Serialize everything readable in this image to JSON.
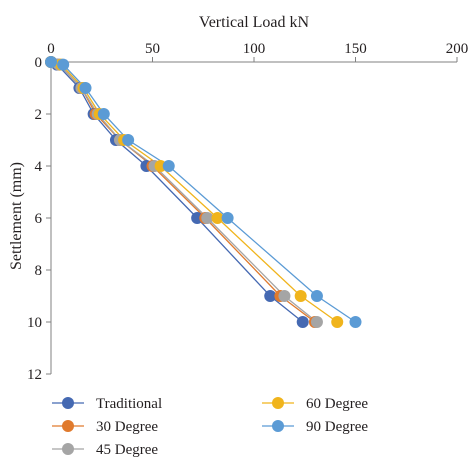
{
  "chart_data": {
    "type": "line",
    "title": "",
    "xlabel": "Vertical Load kN",
    "ylabel": "Settlement (mm)",
    "x_axis_position": "top",
    "y_axis_inverted": true,
    "xlim": [
      0,
      200
    ],
    "ylim": [
      0,
      12
    ],
    "x_ticks": [
      "0",
      "50",
      "100",
      "150",
      "200"
    ],
    "y_ticks": [
      "0",
      "2",
      "4",
      "6",
      "8",
      "10",
      "12"
    ],
    "grid": false,
    "legend_position": "bottom",
    "series": [
      {
        "name": "Traditional",
        "color": "#4569b2",
        "points": [
          {
            "load": 0,
            "settlement": 0
          },
          {
            "load": 3,
            "settlement": 0.1
          },
          {
            "load": 14,
            "settlement": 1
          },
          {
            "load": 21,
            "settlement": 2
          },
          {
            "load": 32,
            "settlement": 3
          },
          {
            "load": 47,
            "settlement": 4
          },
          {
            "load": 72,
            "settlement": 6
          },
          {
            "load": 108,
            "settlement": 9
          },
          {
            "load": 124,
            "settlement": 10
          }
        ]
      },
      {
        "name": "30 Degree",
        "color": "#e07a2d",
        "points": [
          {
            "load": 0,
            "settlement": 0
          },
          {
            "load": 4,
            "settlement": 0.1
          },
          {
            "load": 15,
            "settlement": 1
          },
          {
            "load": 22,
            "settlement": 2
          },
          {
            "load": 34,
            "settlement": 3
          },
          {
            "load": 50,
            "settlement": 4
          },
          {
            "load": 76,
            "settlement": 6
          },
          {
            "load": 113,
            "settlement": 9
          },
          {
            "load": 130,
            "settlement": 10
          }
        ]
      },
      {
        "name": "45 Degree",
        "color": "#a5a5a5",
        "points": [
          {
            "load": 0,
            "settlement": 0
          },
          {
            "load": 4,
            "settlement": 0.1
          },
          {
            "load": 15,
            "settlement": 1
          },
          {
            "load": 23,
            "settlement": 2
          },
          {
            "load": 34,
            "settlement": 3
          },
          {
            "load": 51,
            "settlement": 4
          },
          {
            "load": 77,
            "settlement": 6
          },
          {
            "load": 115,
            "settlement": 9
          },
          {
            "load": 131,
            "settlement": 10
          }
        ]
      },
      {
        "name": "60 Degree",
        "color": "#f0b41c",
        "points": [
          {
            "load": 0,
            "settlement": 0
          },
          {
            "load": 5,
            "settlement": 0.1
          },
          {
            "load": 16,
            "settlement": 1
          },
          {
            "load": 24,
            "settlement": 2
          },
          {
            "load": 36,
            "settlement": 3
          },
          {
            "load": 54,
            "settlement": 4
          },
          {
            "load": 82,
            "settlement": 6
          },
          {
            "load": 123,
            "settlement": 9
          },
          {
            "load": 141,
            "settlement": 10
          }
        ]
      },
      {
        "name": "90 Degree",
        "color": "#5b9bd5",
        "points": [
          {
            "load": 0,
            "settlement": 0
          },
          {
            "load": 6,
            "settlement": 0.1
          },
          {
            "load": 17,
            "settlement": 1
          },
          {
            "load": 26,
            "settlement": 2
          },
          {
            "load": 38,
            "settlement": 3
          },
          {
            "load": 58,
            "settlement": 4
          },
          {
            "load": 87,
            "settlement": 6
          },
          {
            "load": 131,
            "settlement": 9
          },
          {
            "load": 150,
            "settlement": 10
          }
        ]
      }
    ]
  }
}
